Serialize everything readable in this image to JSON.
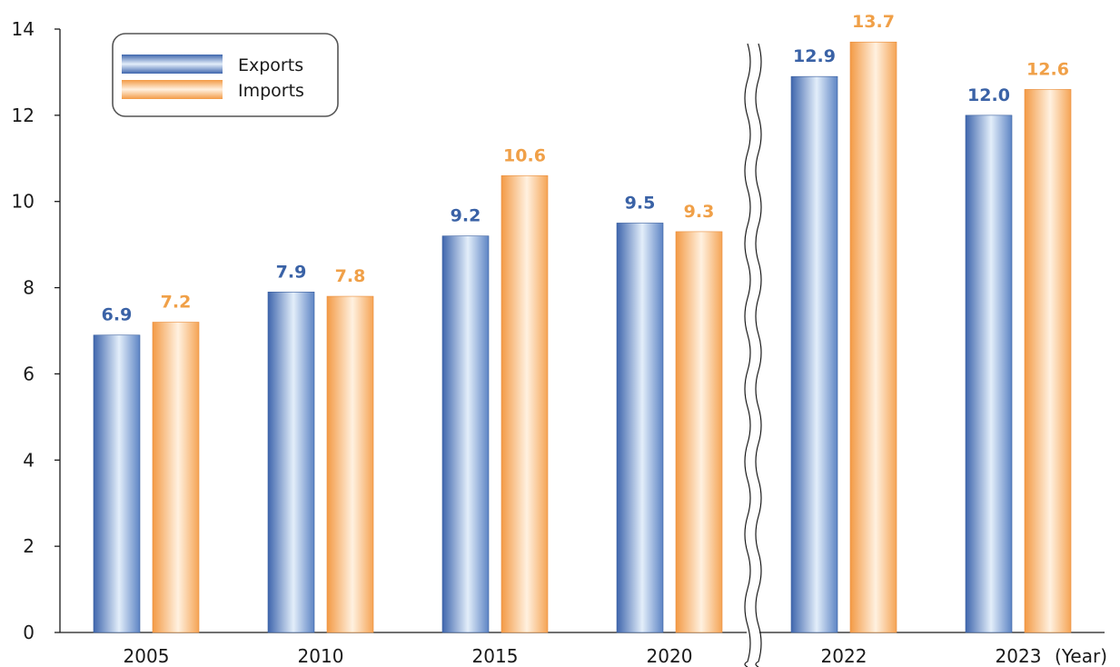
{
  "chart_data": {
    "type": "bar",
    "categories": [
      "2005",
      "2010",
      "2015",
      "2020",
      "2022",
      "2023"
    ],
    "x_unit_label": "(Year)",
    "series": [
      {
        "name": "Exports",
        "values": [
          6.9,
          7.9,
          9.2,
          9.5,
          12.9,
          12.0
        ],
        "labels": [
          "6.9",
          "7.9",
          "9.2",
          "9.5",
          "12.9",
          "12.0"
        ]
      },
      {
        "name": "Imports",
        "values": [
          7.2,
          7.8,
          10.6,
          9.3,
          13.7,
          12.6
        ],
        "labels": [
          "7.2",
          "7.8",
          "10.6",
          "9.3",
          "13.7",
          "12.6"
        ]
      }
    ],
    "ylim": [
      0,
      14
    ],
    "yticks": [
      "0",
      "2",
      "4",
      "6",
      "8",
      "10",
      "12",
      "14"
    ],
    "axis_break_between": [
      "2020",
      "2022"
    ],
    "grid": false,
    "legend_position": "top-left"
  },
  "colors": {
    "exports_dark": "#3f66ad",
    "exports_light": "#e3eefa",
    "imports_dark": "#f39a45",
    "imports_light": "#fff1e0",
    "exports_label": "#3a62a6",
    "imports_label": "#f0a048"
  }
}
